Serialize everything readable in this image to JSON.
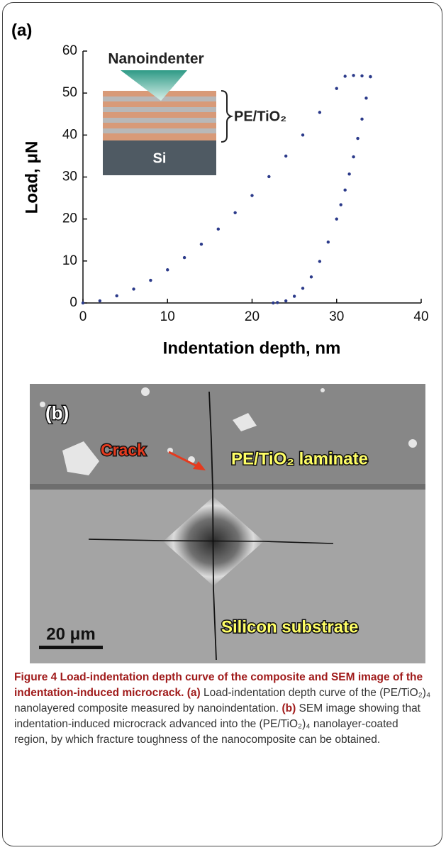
{
  "chart_data": {
    "type": "scatter",
    "panel_label": "(a)",
    "xlabel": "Indentation depth, nm",
    "ylabel": "Load, μN",
    "xlim": [
      0,
      40
    ],
    "xticks": [
      0,
      10,
      20,
      30,
      40
    ],
    "ylim": [
      0,
      60
    ],
    "yticks": [
      0,
      10,
      20,
      30,
      40,
      50,
      60
    ],
    "series": [
      {
        "color": "#2b3a8a",
        "x": [
          0,
          2,
          4,
          6,
          8,
          10,
          12,
          14,
          16,
          18,
          20,
          22,
          24,
          26,
          28,
          30,
          31,
          32,
          33,
          34
        ],
        "values": [
          0,
          0.5,
          1.7,
          3.3,
          5.4,
          7.9,
          10.8,
          14.0,
          17.6,
          21.5,
          25.6,
          30.1,
          35.0,
          40.0,
          45.4,
          51.1,
          54,
          54.2,
          54.1,
          53.9
        ]
      },
      {
        "color": "#2b3a8a",
        "x": [
          34,
          33.5,
          33,
          32.5,
          32,
          31.5,
          31,
          30.5,
          30,
          29,
          28,
          27,
          26,
          25,
          24,
          23,
          22.5
        ],
        "values": [
          53.9,
          48.8,
          43.8,
          39.2,
          34.8,
          30.7,
          26.9,
          23.4,
          20.0,
          14.5,
          9.9,
          6.2,
          3.5,
          1.6,
          0.5,
          0.1,
          0
        ]
      }
    ],
    "inset": {
      "indenter": "Nanoindenter",
      "layers": "PE/TiO₂",
      "substrate": "Si"
    }
  },
  "figure": {
    "panel_b": {
      "label": "(b)",
      "crack": "Crack",
      "laminate": "PE/TiO₂ laminate",
      "substrate": "Silicon substrate",
      "scale": "20 μm"
    },
    "caption": {
      "title": "Figure 4 Load-indentation depth curve of the composite and SEM image of the indentation-induced microcrack.",
      "parts": [
        {
          "label": "(a)",
          "text": "Load-indentation depth curve of the (PE/TiO₂)₄ nanolayered composite measured by nanoindentation."
        },
        {
          "label": "(b)",
          "text": "SEM image showing that indentation-induced microcrack advanced into the (PE/TiO₂)₄ nanolayer-coated region, by which fracture toughness of the nanocomposite can be obtained."
        }
      ]
    }
  }
}
